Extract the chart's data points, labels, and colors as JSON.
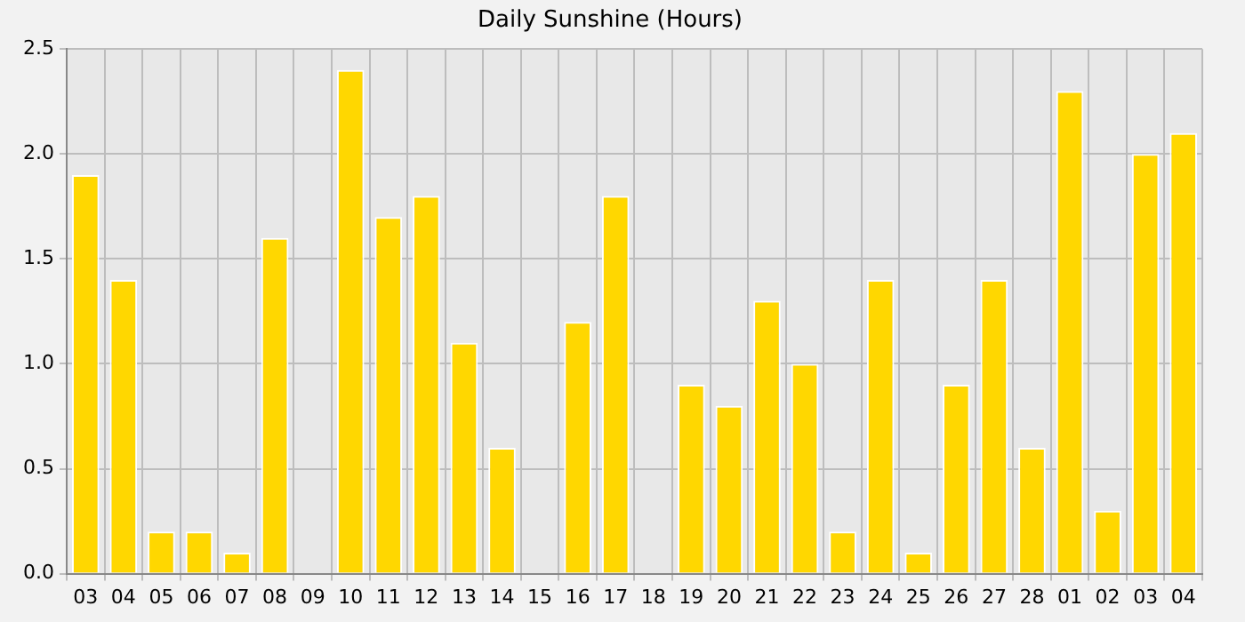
{
  "chart_data": {
    "type": "bar",
    "title": "Daily Sunshine (Hours)",
    "categories": [
      "03",
      "04",
      "05",
      "06",
      "07",
      "08",
      "09",
      "10",
      "11",
      "12",
      "13",
      "14",
      "15",
      "16",
      "17",
      "18",
      "19",
      "20",
      "21",
      "22",
      "23",
      "24",
      "25",
      "26",
      "27",
      "28",
      "01",
      "02",
      "03",
      "04"
    ],
    "values": [
      1.9,
      1.4,
      0.2,
      0.2,
      0.1,
      1.6,
      0,
      2.4,
      1.7,
      1.8,
      1.1,
      0.6,
      0,
      1.2,
      1.8,
      0,
      0.9,
      0.8,
      1.3,
      1.0,
      0.2,
      1.4,
      0.1,
      0.9,
      1.4,
      0.6,
      2.3,
      0.3,
      2.0,
      2.1
    ],
    "color": "#ffd700",
    "ylim": [
      0,
      2.5
    ],
    "yticks": [
      {
        "value": 0,
        "label": "0.0"
      },
      {
        "value": 0.5,
        "label": "0.5"
      },
      {
        "value": 1,
        "label": "1.0"
      },
      {
        "value": 1.5,
        "label": "1.5"
      },
      {
        "value": 2,
        "label": "2.0"
      },
      {
        "value": 2.5,
        "label": "2.5"
      }
    ],
    "grid": true
  }
}
